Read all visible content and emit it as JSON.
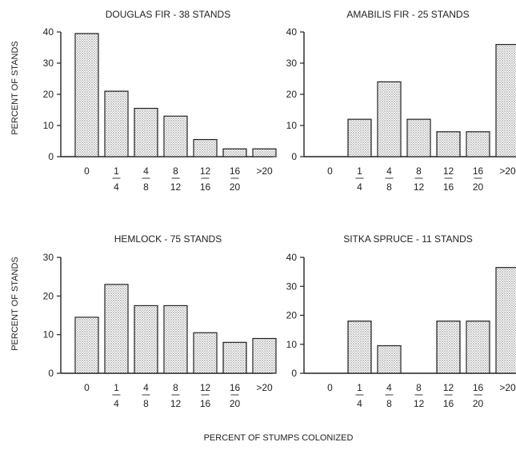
{
  "y_axis_label": "PERCENT OF STANDS",
  "x_axis_label": "PERCENT OF STUMPS COLONIZED",
  "chart_data": [
    {
      "type": "bar",
      "title": "DOUGLAS FIR - 38 STANDS",
      "categories": [
        {
          "top": "0",
          "bottom": ""
        },
        {
          "top": "1",
          "bottom": "4"
        },
        {
          "top": "4",
          "bottom": "8"
        },
        {
          "top": "8",
          "bottom": "12"
        },
        {
          "top": "12",
          "bottom": "16"
        },
        {
          "top": "16",
          "bottom": "20"
        },
        {
          "top": ">20",
          "bottom": ""
        }
      ],
      "values": [
        39.5,
        21,
        15.5,
        13,
        5.5,
        2.5,
        2.5
      ],
      "ylim": [
        0,
        40
      ],
      "yticks": [
        "0",
        "10",
        "20",
        "30",
        "40"
      ],
      "ylabel": "PERCENT OF STANDS"
    },
    {
      "type": "bar",
      "title": "AMABILIS FIR - 25 STANDS",
      "categories": [
        {
          "top": "0",
          "bottom": ""
        },
        {
          "top": "1",
          "bottom": "4"
        },
        {
          "top": "4",
          "bottom": "8"
        },
        {
          "top": "8",
          "bottom": "12"
        },
        {
          "top": "12",
          "bottom": "16"
        },
        {
          "top": "16",
          "bottom": "20"
        },
        {
          "top": ">20",
          "bottom": ""
        }
      ],
      "values": [
        0,
        12,
        24,
        12,
        8,
        8,
        36
      ],
      "ylim": [
        0,
        40
      ],
      "yticks": [
        "0",
        "10",
        "20",
        "30",
        "40"
      ],
      "ylabel": ""
    },
    {
      "type": "bar",
      "title": "HEMLOCK - 75 STANDS",
      "categories": [
        {
          "top": "0",
          "bottom": ""
        },
        {
          "top": "1",
          "bottom": "4"
        },
        {
          "top": "4",
          "bottom": "8"
        },
        {
          "top": "8",
          "bottom": "12"
        },
        {
          "top": "12",
          "bottom": "16"
        },
        {
          "top": "16",
          "bottom": "20"
        },
        {
          "top": ">20",
          "bottom": ""
        }
      ],
      "values": [
        14.5,
        23,
        17.5,
        17.5,
        10.5,
        8,
        9
      ],
      "ylim": [
        0,
        30
      ],
      "yticks": [
        "0",
        "10",
        "20",
        "30"
      ],
      "ylabel": "PERCENT OF STANDS"
    },
    {
      "type": "bar",
      "title": "SITKA SPRUCE - 11 STANDS",
      "categories": [
        {
          "top": "0",
          "bottom": ""
        },
        {
          "top": "1",
          "bottom": "4"
        },
        {
          "top": "4",
          "bottom": "8"
        },
        {
          "top": "8",
          "bottom": "12"
        },
        {
          "top": "12",
          "bottom": "16"
        },
        {
          "top": "16",
          "bottom": "20"
        },
        {
          "top": ">20",
          "bottom": ""
        }
      ],
      "values": [
        0,
        18,
        9.5,
        0,
        18,
        18,
        36.5
      ],
      "ylim": [
        0,
        40
      ],
      "yticks": [
        "0",
        "10",
        "20",
        "30",
        "40"
      ],
      "ylabel": "PERCENT OF STANDS"
    }
  ]
}
